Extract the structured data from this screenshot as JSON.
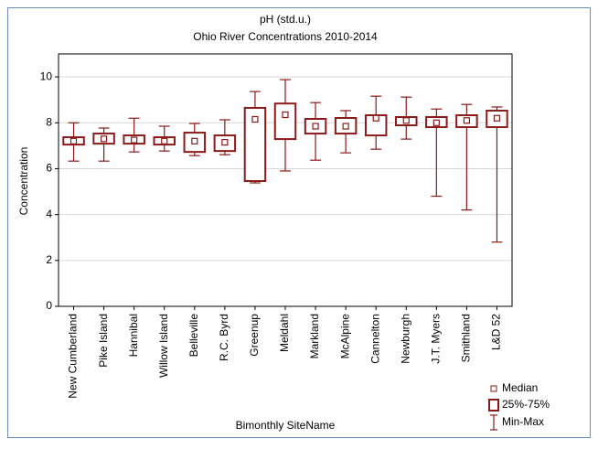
{
  "chart_data": {
    "type": "box",
    "title": "pH (std.u.)",
    "subtitle": "Ohio River Concentrations 2010-2014",
    "x_label": "Bimonthly SiteName",
    "y_label": "Concentration",
    "categories": [
      "New Cumberland",
      "Pike Island",
      "Hannibal",
      "Willow Island",
      "Belleville",
      "R.C. Byrd",
      "Greenup",
      "Meldahl",
      "Markland",
      "McAlpine",
      "Cannelton",
      "Newburgh",
      "J.T. Myers",
      "Smithland",
      "L&D 52"
    ],
    "min": [
      6.33,
      6.33,
      6.73,
      6.77,
      6.57,
      6.61,
      5.38,
      5.9,
      6.37,
      6.69,
      6.85,
      7.29,
      4.8,
      4.2,
      2.8
    ],
    "q1": [
      7.05,
      7.09,
      7.09,
      7.05,
      6.73,
      6.77,
      5.46,
      7.29,
      7.53,
      7.53,
      7.45,
      7.89,
      7.81,
      7.81,
      7.81
    ],
    "median": [
      7.2,
      7.3,
      7.25,
      7.2,
      7.2,
      7.15,
      8.15,
      8.35,
      7.85,
      7.85,
      8.2,
      8.1,
      8.0,
      8.1,
      8.2
    ],
    "q3": [
      7.37,
      7.53,
      7.45,
      7.37,
      7.57,
      7.45,
      8.65,
      8.84,
      8.17,
      8.21,
      8.33,
      8.25,
      8.25,
      8.33,
      8.53
    ],
    "max": [
      8.0,
      7.77,
      8.2,
      7.85,
      7.97,
      8.13,
      9.36,
      9.88,
      8.88,
      8.53,
      9.16,
      9.12,
      8.6,
      8.8,
      8.69
    ],
    "color": "#8b1a1a",
    "legend": {
      "median": "Median",
      "box": "25%-75%",
      "whisker": "Min-Max"
    },
    "legend_position": "lower right",
    "ylim": [
      0,
      11
    ],
    "yticks": [
      0,
      2,
      4,
      6,
      8,
      10
    ],
    "grid": true
  }
}
